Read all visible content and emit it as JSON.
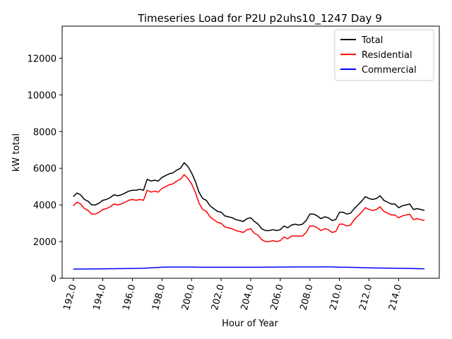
{
  "chart_data": {
    "type": "line",
    "title": "Timeseries Load for P2U p2uhs10_1247  Day 9",
    "xlabel": "Hour of Year",
    "ylabel": "kW total",
    "xlim": [
      191.25,
      216.75
    ],
    "ylim": [
      0,
      13750
    ],
    "x_ticks": [
      192,
      194,
      196,
      198,
      200,
      202,
      204,
      206,
      208,
      210,
      212,
      214
    ],
    "x_tick_labels": [
      "192.0",
      "194.0",
      "196.0",
      "198.0",
      "200.0",
      "202.0",
      "204.0",
      "206.0",
      "208.0",
      "210.0",
      "212.0",
      "214.0"
    ],
    "y_ticks": [
      0,
      2000,
      4000,
      6000,
      8000,
      10000,
      12000
    ],
    "y_tick_labels": [
      "0",
      "2000",
      "4000",
      "6000",
      "8000",
      "10000",
      "12000"
    ],
    "legend_position": "top-right",
    "x_start": 192,
    "x_step": 0.25,
    "series": [
      {
        "name": "Total",
        "color": "#000000",
        "values": [
          4450,
          4650,
          4550,
          4300,
          4200,
          4000,
          4000,
          4100,
          4250,
          4300,
          4400,
          4550,
          4500,
          4550,
          4650,
          4750,
          4800,
          4800,
          4850,
          4800,
          5400,
          5300,
          5350,
          5300,
          5500,
          5600,
          5700,
          5750,
          5900,
          6000,
          6300,
          6100,
          5750,
          5300,
          4700,
          4350,
          4250,
          3950,
          3800,
          3650,
          3600,
          3400,
          3350,
          3300,
          3200,
          3150,
          3100,
          3250,
          3300,
          3100,
          2950,
          2700,
          2600,
          2600,
          2650,
          2600,
          2650,
          2850,
          2750,
          2900,
          2950,
          2900,
          2950,
          3150,
          3500,
          3500,
          3400,
          3250,
          3350,
          3300,
          3150,
          3200,
          3600,
          3600,
          3500,
          3550,
          3800,
          4000,
          4200,
          4450,
          4350,
          4300,
          4350,
          4500,
          4250,
          4150,
          4050,
          4050,
          3850,
          3950,
          4000,
          4050,
          3750,
          3800,
          3750,
          3700
        ]
      },
      {
        "name": "Residential",
        "color": "#ff0000",
        "values": [
          3950,
          4150,
          4050,
          3800,
          3700,
          3500,
          3500,
          3600,
          3750,
          3800,
          3900,
          4050,
          4000,
          4050,
          4150,
          4250,
          4300,
          4250,
          4300,
          4250,
          4800,
          4700,
          4750,
          4700,
          4900,
          5000,
          5100,
          5150,
          5300,
          5400,
          5650,
          5450,
          5150,
          4700,
          4100,
          3750,
          3650,
          3350,
          3200,
          3050,
          3000,
          2800,
          2750,
          2700,
          2600,
          2550,
          2500,
          2650,
          2700,
          2450,
          2350,
          2100,
          2000,
          2000,
          2050,
          2000,
          2050,
          2250,
          2150,
          2300,
          2300,
          2300,
          2300,
          2500,
          2850,
          2850,
          2750,
          2600,
          2700,
          2650,
          2500,
          2550,
          2950,
          2950,
          2850,
          2900,
          3200,
          3400,
          3600,
          3850,
          3750,
          3700,
          3750,
          3900,
          3650,
          3550,
          3450,
          3450,
          3300,
          3400,
          3450,
          3500,
          3200,
          3250,
          3200,
          3150
        ]
      },
      {
        "name": "Commercial",
        "color": "#0000ff",
        "values": [
          500,
          500,
          505,
          505,
          505,
          510,
          510,
          510,
          515,
          515,
          520,
          520,
          525,
          525,
          530,
          530,
          535,
          540,
          545,
          550,
          560,
          570,
          580,
          590,
          600,
          605,
          610,
          610,
          610,
          610,
          610,
          610,
          610,
          605,
          600,
          600,
          600,
          600,
          600,
          600,
          600,
          600,
          600,
          600,
          600,
          600,
          600,
          600,
          600,
          600,
          600,
          600,
          605,
          605,
          605,
          610,
          610,
          610,
          610,
          615,
          615,
          615,
          615,
          615,
          615,
          615,
          615,
          620,
          620,
          620,
          615,
          610,
          600,
          600,
          600,
          595,
          590,
          585,
          580,
          575,
          570,
          565,
          560,
          560,
          555,
          555,
          550,
          550,
          545,
          545,
          540,
          535,
          530,
          525,
          520,
          515
        ]
      }
    ]
  }
}
